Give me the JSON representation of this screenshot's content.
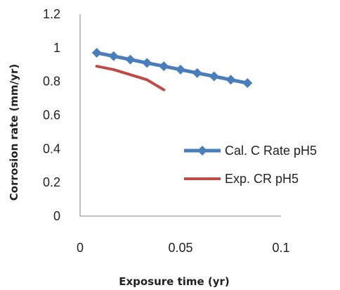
{
  "chart_data": {
    "type": "line",
    "xlabel": "Exposure time (yr)",
    "ylabel": "Corrosion rate (mm/yr)",
    "xlim": [
      0,
      0.1
    ],
    "ylim": [
      0,
      1.2
    ],
    "x_ticks": [
      "0",
      "0.05",
      "0.1"
    ],
    "y_ticks": [
      "0",
      "0.2",
      "0.4",
      "0.6",
      "0.8",
      "1",
      "1.2"
    ],
    "grid": false,
    "legend_position": "right",
    "series": [
      {
        "name": "Cal. C Rate pH5",
        "color": "#4a7ebb",
        "marker": "diamond",
        "x": [
          0.0083,
          0.0167,
          0.025,
          0.0333,
          0.0417,
          0.05,
          0.0583,
          0.0667,
          0.075,
          0.0833
        ],
        "y": [
          0.97,
          0.95,
          0.93,
          0.91,
          0.89,
          0.87,
          0.85,
          0.83,
          0.81,
          0.79
        ]
      },
      {
        "name": "Exp. CR pH5",
        "color": "#be4b48",
        "marker": "none",
        "x": [
          0.0083,
          0.0167,
          0.025,
          0.0333,
          0.0417
        ],
        "y": [
          0.89,
          0.87,
          0.84,
          0.81,
          0.75
        ]
      }
    ]
  }
}
